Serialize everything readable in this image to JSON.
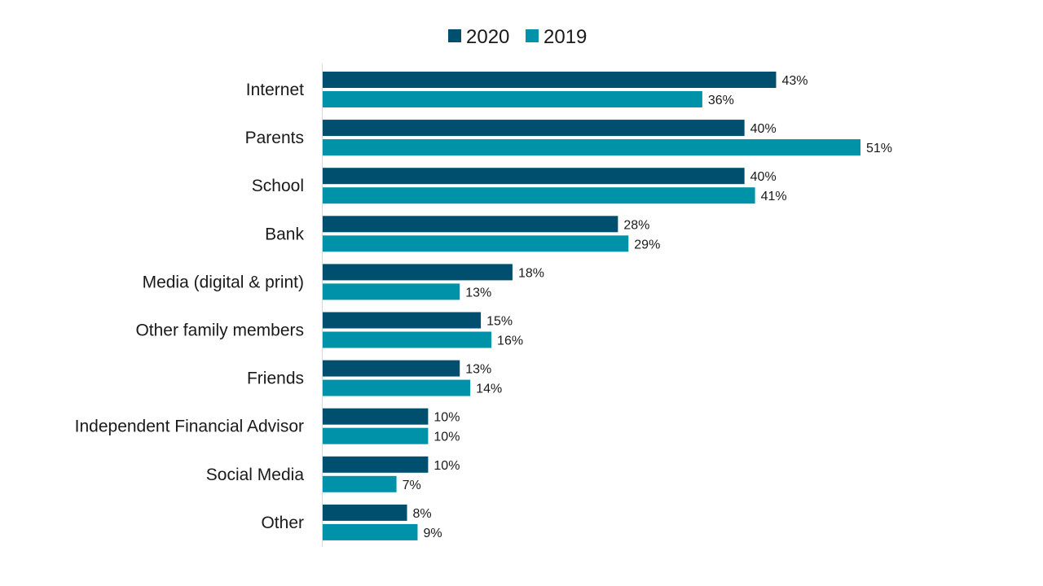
{
  "chart_data": {
    "type": "bar",
    "orientation": "horizontal",
    "title": "",
    "xlabel": "",
    "ylabel": "",
    "categories": [
      "Internet",
      "Parents",
      "School",
      "Bank",
      "Media (digital & print)",
      "Other family members",
      "Friends",
      "Independent Financial Advisor",
      "Social Media",
      "Other"
    ],
    "series": [
      {
        "name": "2020",
        "color": "#004f6e",
        "values": [
          43,
          40,
          40,
          28,
          18,
          15,
          13,
          10,
          10,
          8
        ],
        "labels": [
          "43%",
          "40%",
          "40%",
          "28%",
          "18%",
          "15%",
          "13%",
          "10%",
          "10%",
          "8%"
        ]
      },
      {
        "name": "2019",
        "color": "#0092a8",
        "values": [
          36,
          51,
          41,
          29,
          13,
          16,
          14,
          10,
          7,
          9
        ],
        "labels": [
          "36%",
          "51%",
          "41%",
          "29%",
          "13%",
          "16%",
          "14%",
          "10%",
          "7%",
          "9%"
        ]
      }
    ],
    "xlim": [
      0,
      51
    ],
    "grid": false,
    "legend_position": "top-center"
  }
}
